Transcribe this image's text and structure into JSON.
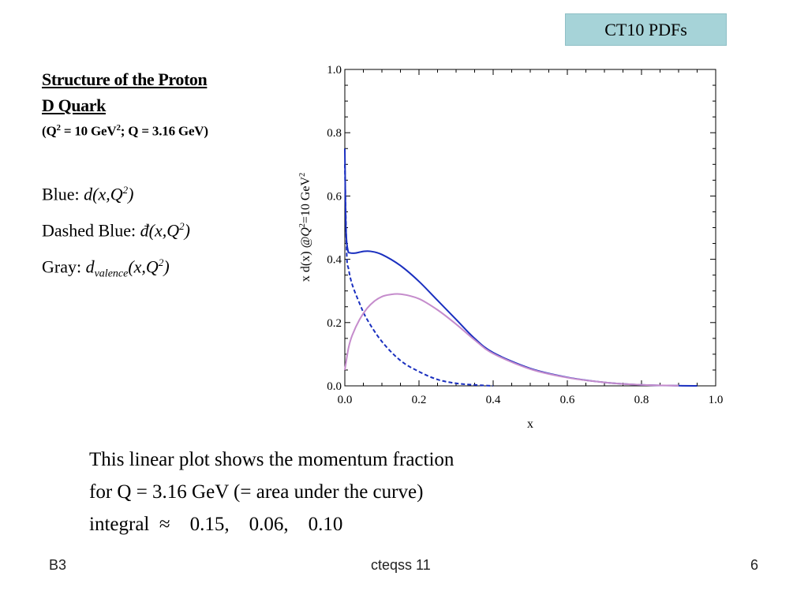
{
  "badge": {
    "label": "CT10 PDFs"
  },
  "title": {
    "line1": "Structure of the Proton",
    "line2": "D Quark",
    "q2_prefix": "(Q",
    "q2_sup": "2",
    "q2_mid": " = 10 GeV",
    "q2_sup2": "2",
    "q2_rest": "; Q = 3.16 GeV)"
  },
  "legend": {
    "blue_label": "Blue: ",
    "blue_formula": "d(x,Q",
    "blue_sup": "2",
    "blue_close": ")",
    "dashed_label": "Dashed Blue: ",
    "dashed_formula": "đ(x,Q",
    "dashed_sup": "2",
    "dashed_close": ")",
    "gray_label": "Gray: ",
    "gray_formula_d": "d",
    "gray_sub": "valence",
    "gray_formula_rest": "(x,Q",
    "gray_sup": "2",
    "gray_close": ")"
  },
  "caption": {
    "line1": "This linear plot shows the momentum fraction",
    "line2": "for Q = 3.16 GeV (= area under the curve)",
    "line3": "integral  ≈    0.15,    0.06,    0.10"
  },
  "footer": {
    "left": "B3",
    "center": "cteqss 11",
    "right": "6"
  },
  "colors": {
    "total": "#1a2fbf",
    "sea": "#1a2fbf",
    "valence": "#c58ccc",
    "badge": "#a6d3d8"
  },
  "chart_data": {
    "type": "line",
    "xlabel": "x",
    "ylabel": "x d(x)",
    "ylabel2": "@Q",
    "ylabel2_sup": "2",
    "ylabel2_rest": "=10 GeV",
    "ylabel2_sup2": "2",
    "xlim": [
      0,
      1
    ],
    "ylim": [
      0,
      1
    ],
    "xticks": [
      "0.0",
      "0.2",
      "0.4",
      "0.6",
      "0.8",
      "1.0"
    ],
    "yticks": [
      "0.0",
      "0.2",
      "0.4",
      "0.6",
      "0.8",
      "1.0"
    ],
    "series": [
      {
        "style": "solid",
        "x": [
          0.0,
          0.003,
          0.008,
          0.015,
          0.03,
          0.05,
          0.07,
          0.1,
          0.15,
          0.2,
          0.25,
          0.3,
          0.35,
          0.4,
          0.5,
          0.6,
          0.7,
          0.8,
          0.9,
          0.95
        ],
        "y": [
          0.75,
          0.5,
          0.43,
          0.42,
          0.42,
          0.425,
          0.425,
          0.415,
          0.38,
          0.33,
          0.27,
          0.21,
          0.15,
          0.105,
          0.055,
          0.027,
          0.011,
          0.003,
          0.0005,
          0.0
        ]
      },
      {
        "style": "dashed",
        "x": [
          0.0,
          0.005,
          0.01,
          0.02,
          0.04,
          0.06,
          0.1,
          0.15,
          0.2,
          0.25,
          0.3,
          0.35,
          0.4
        ],
        "y": [
          0.7,
          0.42,
          0.37,
          0.32,
          0.26,
          0.21,
          0.14,
          0.08,
          0.045,
          0.02,
          0.008,
          0.003,
          0.0
        ]
      },
      {
        "style": "solid",
        "x": [
          0.0,
          0.01,
          0.02,
          0.04,
          0.06,
          0.08,
          0.1,
          0.12,
          0.15,
          0.2,
          0.25,
          0.3,
          0.35,
          0.4,
          0.5,
          0.6,
          0.7,
          0.8,
          0.9
        ],
        "y": [
          0.05,
          0.12,
          0.16,
          0.21,
          0.245,
          0.268,
          0.282,
          0.288,
          0.29,
          0.275,
          0.24,
          0.195,
          0.145,
          0.102,
          0.053,
          0.026,
          0.011,
          0.003,
          0.0005
        ]
      }
    ]
  }
}
